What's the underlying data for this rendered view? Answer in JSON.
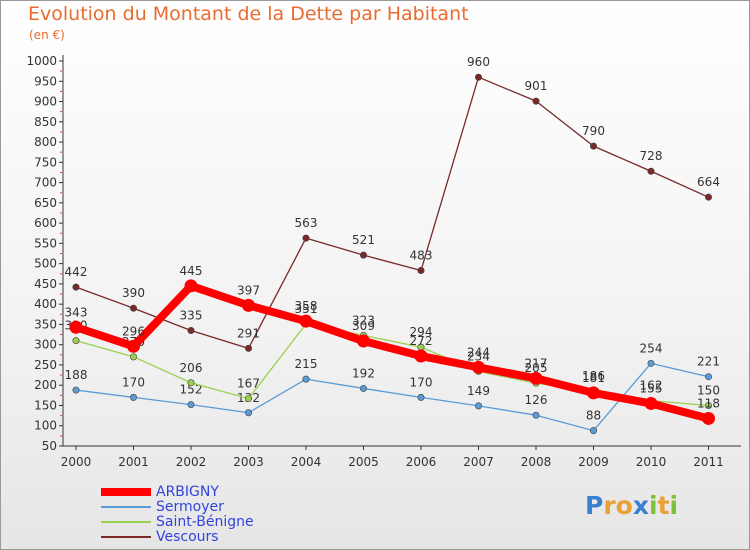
{
  "title": "Evolution du Montant de la Dette par Habitant",
  "unit_label": "(en €)",
  "logo": {
    "letters": [
      "P",
      "r",
      "o",
      "x",
      "i",
      "t",
      "i"
    ],
    "colors": [
      "#3a7fd0",
      "#e9a035",
      "#e9a035",
      "#3a7fd0",
      "#7cc13a",
      "#e9a035",
      "#7cc13a"
    ]
  },
  "chart_data": {
    "type": "line",
    "categories": [
      "2000",
      "2001",
      "2002",
      "2003",
      "2004",
      "2005",
      "2006",
      "2007",
      "2008",
      "2009",
      "2010",
      "2011"
    ],
    "ylim": [
      50,
      1000
    ],
    "yticks": [
      50,
      100,
      150,
      200,
      250,
      300,
      350,
      400,
      450,
      500,
      550,
      600,
      650,
      700,
      750,
      800,
      850,
      900,
      950,
      1000
    ],
    "grid": false,
    "legend": "bottom-left",
    "series": [
      {
        "name": "Vescours",
        "color": "#7a2828",
        "values": [
          442,
          390,
          335,
          291,
          563,
          521,
          483,
          960,
          901,
          790,
          728,
          664
        ]
      },
      {
        "name": "Sermoyer",
        "color": "#5b9bd5",
        "values": [
          188,
          170,
          152,
          132,
          215,
          192,
          170,
          149,
          126,
          88,
          254,
          221
        ]
      },
      {
        "name": "Saint-Bénigne",
        "color": "#9ad04e",
        "values": [
          310,
          270,
          206,
          167,
          351,
          323,
          294,
          234,
          205,
          186,
          162,
          150
        ]
      },
      {
        "name": "ARBIGNY",
        "color": "#ff0000",
        "values": [
          343,
          296,
          445,
          397,
          358,
          309,
          272,
          244,
          217,
          181,
          155,
          118
        ]
      }
    ],
    "legend_order": [
      "ARBIGNY",
      "Sermoyer",
      "Saint-Bénigne",
      "Vescours"
    ]
  }
}
